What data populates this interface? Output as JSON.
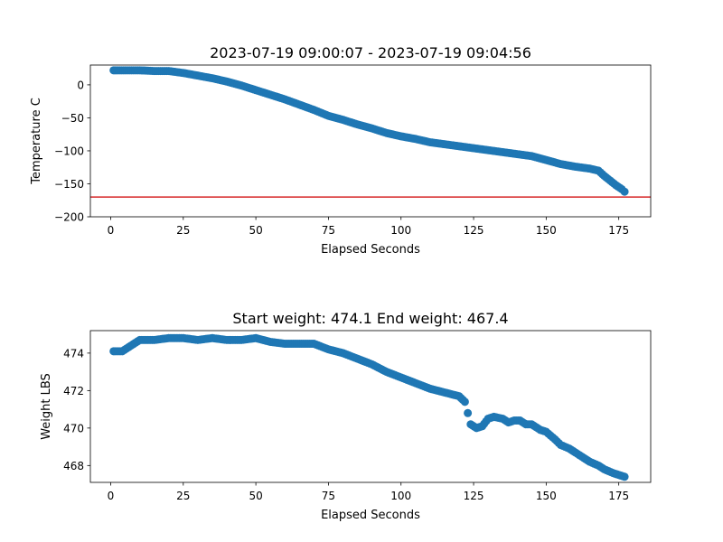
{
  "chart_data": [
    {
      "type": "scatter",
      "title": "2023-07-19 09:00:07 - 2023-07-19 09:04:56",
      "xlabel": "Elapsed Seconds",
      "ylabel": "Temperature C",
      "xlim": [
        -7,
        186
      ],
      "ylim": [
        -200,
        30
      ],
      "xticks": [
        0,
        25,
        50,
        75,
        100,
        125,
        150,
        175
      ],
      "yticks": [
        0,
        -50,
        -100,
        -150,
        -200
      ],
      "marker_color": "#1f77b4",
      "reference_line": {
        "y": -170,
        "color": "#d62728"
      },
      "x": [
        1,
        5,
        10,
        15,
        20,
        25,
        30,
        35,
        40,
        45,
        50,
        55,
        60,
        65,
        70,
        75,
        80,
        85,
        90,
        95,
        100,
        105,
        110,
        115,
        120,
        125,
        130,
        135,
        140,
        145,
        150,
        155,
        160,
        165,
        168,
        170,
        172,
        174,
        176,
        177
      ],
      "y": [
        22,
        22,
        22,
        21,
        21,
        18,
        14,
        10,
        5,
        -1,
        -8,
        -15,
        -22,
        -30,
        -38,
        -47,
        -53,
        -60,
        -66,
        -73,
        -78,
        -82,
        -87,
        -90,
        -93,
        -96,
        -99,
        -102,
        -105,
        -108,
        -114,
        -120,
        -124,
        -127,
        -130,
        -138,
        -145,
        -152,
        -158,
        -162
      ]
    },
    {
      "type": "scatter",
      "title": "Start weight: 474.1 End weight: 467.4",
      "xlabel": "Elapsed Seconds",
      "ylabel": "Weight LBS",
      "xlim": [
        -7,
        186
      ],
      "ylim": [
        467.1,
        475.2
      ],
      "xticks": [
        0,
        25,
        50,
        75,
        100,
        125,
        150,
        175
      ],
      "yticks": [
        474,
        472,
        470,
        468
      ],
      "marker_color": "#1f77b4",
      "x": [
        1,
        4,
        7,
        10,
        15,
        20,
        25,
        30,
        35,
        40,
        45,
        50,
        55,
        60,
        65,
        70,
        75,
        80,
        85,
        90,
        95,
        100,
        105,
        110,
        115,
        120,
        122,
        123,
        124,
        126,
        128,
        130,
        132,
        135,
        137,
        139,
        141,
        143,
        145,
        148,
        150,
        153,
        155,
        158,
        160,
        163,
        165,
        168,
        170,
        173,
        175,
        177
      ],
      "y": [
        474.1,
        474.1,
        474.4,
        474.7,
        474.7,
        474.8,
        474.8,
        474.7,
        474.8,
        474.7,
        474.7,
        474.8,
        474.6,
        474.5,
        474.5,
        474.5,
        474.2,
        474.0,
        473.7,
        473.4,
        473.0,
        472.7,
        472.4,
        472.1,
        471.9,
        471.7,
        471.4,
        470.8,
        470.2,
        470.0,
        470.1,
        470.5,
        470.6,
        470.5,
        470.3,
        470.4,
        470.4,
        470.2,
        470.2,
        469.9,
        469.8,
        469.4,
        469.1,
        468.9,
        468.7,
        468.4,
        468.2,
        468.0,
        467.8,
        467.6,
        467.5,
        467.4
      ]
    }
  ]
}
